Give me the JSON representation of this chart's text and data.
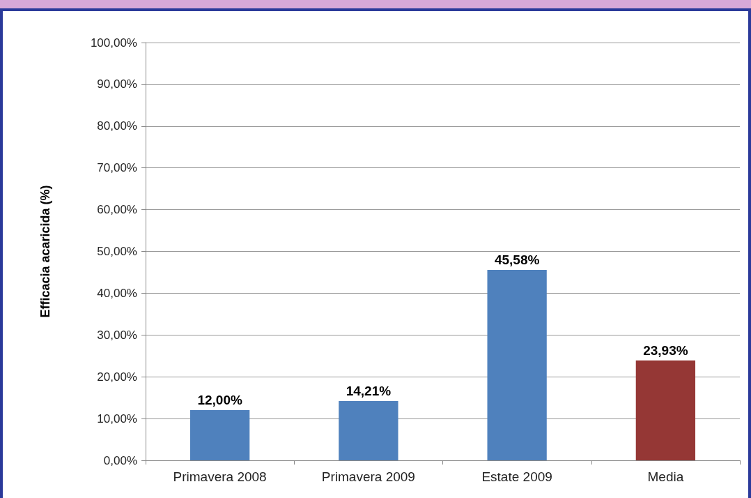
{
  "chart_data": {
    "type": "bar",
    "ylabel": "Efficacia acaricida (%)",
    "categories": [
      "Primavera 2008",
      "Primavera 2009",
      "Estate 2009",
      "Media"
    ],
    "values": [
      12.0,
      14.21,
      45.58,
      23.93
    ],
    "colors": [
      "#4f81bd",
      "#4f81bd",
      "#4f81bd",
      "#953735"
    ],
    "value_labels": [
      "12,00%",
      "14,21%",
      "45,58%",
      "23,93%"
    ],
    "ylim": [
      0,
      100
    ],
    "yticks": [
      {
        "value": 0,
        "label": "0,00%"
      },
      {
        "value": 10,
        "label": "10,00%"
      },
      {
        "value": 20,
        "label": "20,00%"
      },
      {
        "value": 30,
        "label": "30,00%"
      },
      {
        "value": 40,
        "label": "40,00%"
      },
      {
        "value": 50,
        "label": "50,00%"
      },
      {
        "value": 60,
        "label": "60,00%"
      },
      {
        "value": 70,
        "label": "70,00%"
      },
      {
        "value": 80,
        "label": "80,00%"
      },
      {
        "value": 90,
        "label": "90,00%"
      },
      {
        "value": 100,
        "label": "100,00%"
      }
    ],
    "grid": "y"
  }
}
